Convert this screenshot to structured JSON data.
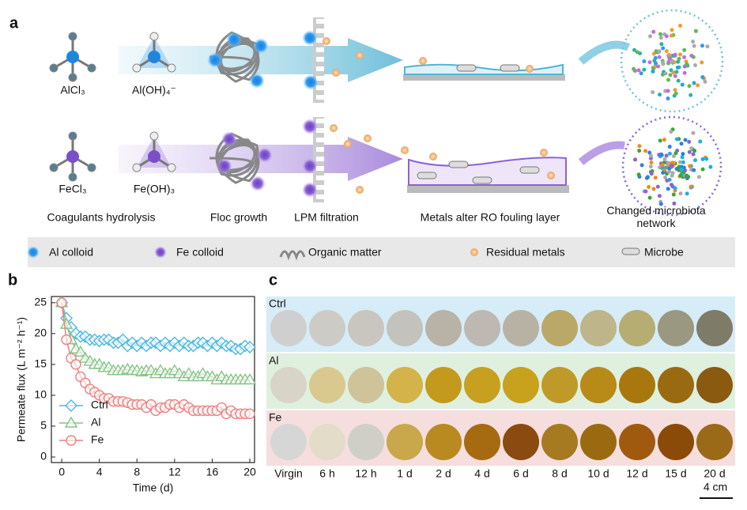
{
  "panel_a": {
    "label": "a",
    "al_labels": [
      "AlCl₃",
      "Al(OH)₄⁻"
    ],
    "fe_labels": [
      "FeCl₃",
      "Fe(OH)₃"
    ],
    "steps": [
      "Coagulants hydrolysis",
      "Floc growth",
      "LPM filtration",
      "Metals alter RO fouling layer",
      "Changed microbiota network"
    ],
    "legend": [
      "Al colloid",
      "Fe colloid",
      "Organic matter",
      "Residual metals",
      "Microbe"
    ]
  },
  "chart_data": {
    "type": "line",
    "label": "b",
    "x_label": "Time (d)",
    "y_label": "Permeate flux (L m⁻² h⁻¹)",
    "x": [
      0,
      0.5,
      1,
      1.5,
      2,
      2.5,
      3,
      3.5,
      4,
      4.5,
      5,
      5.5,
      6,
      6.5,
      7,
      7.5,
      8,
      8.5,
      9,
      9.5,
      10,
      10.5,
      11,
      11.5,
      12,
      12.5,
      13,
      13.5,
      14,
      14.5,
      15,
      15.5,
      16,
      16.5,
      17,
      17.5,
      18,
      18.5,
      19,
      19.5,
      20
    ],
    "series": [
      {
        "name": "Ctrl",
        "color": "#4db8e0",
        "marker": "diamond",
        "values": [
          25,
          22.5,
          21,
          20,
          19.5,
          19.5,
          19,
          19,
          18.8,
          19,
          19,
          18.5,
          18.5,
          19,
          18,
          18.5,
          18,
          18.5,
          18,
          18.5,
          18.5,
          18,
          18.5,
          18,
          18.5,
          18,
          18.5,
          18,
          18,
          18.5,
          18.5,
          18,
          18.5,
          18,
          18.5,
          18,
          18,
          17.5,
          17.5,
          18,
          17.8
        ]
      },
      {
        "name": "Al",
        "color": "#86c484",
        "marker": "triangle",
        "values": [
          25,
          21.5,
          19,
          17.5,
          17,
          16,
          15.5,
          15,
          15,
          14.5,
          14.5,
          14,
          14,
          14,
          14.2,
          14,
          14,
          13.8,
          14,
          14,
          13.5,
          14,
          13.5,
          13.5,
          14,
          13.5,
          13,
          13.5,
          13,
          13,
          13.5,
          13,
          13,
          12.5,
          13,
          12.5,
          12.5,
          12.5,
          12.5,
          12.5,
          12.5
        ]
      },
      {
        "name": "Fe",
        "color": "#ee7f7f",
        "marker": "circle",
        "values": [
          25,
          19,
          16,
          15,
          13,
          12,
          11,
          10.5,
          10,
          9.5,
          9.5,
          9,
          9,
          9,
          8.8,
          8.5,
          8.5,
          8.5,
          8,
          8.5,
          7.5,
          8,
          8,
          8.5,
          8.5,
          8,
          8.5,
          8,
          7.5,
          7.5,
          7.5,
          7.5,
          7.5,
          7.5,
          8,
          7,
          7.5,
          7,
          7,
          7,
          7
        ]
      }
    ],
    "xlim": [
      -1.1,
      20.5
    ],
    "ylim": [
      -0.9,
      26
    ],
    "xticks": [
      0,
      4,
      8,
      12,
      16,
      20
    ],
    "yticks": [
      0,
      5,
      10,
      15,
      20,
      25
    ],
    "legend": "lower left"
  },
  "panel_c": {
    "label": "c",
    "columns": [
      "Virgin",
      "6 h",
      "12 h",
      "1 d",
      "2 d",
      "4 d",
      "6 d",
      "8 d",
      "10 d",
      "12 d",
      "15 d",
      "20 d"
    ],
    "rows": [
      {
        "name": "Ctrl",
        "background": "#d6ecf6",
        "colors": [
          "#cfcfcf",
          "#cdcbc6",
          "#c9c6c0",
          "#c4c2bd",
          "#b9b2a6",
          "#bdb9b2",
          "#b8b2a4",
          "#b9a868",
          "#bfb58a",
          "#b6ad73",
          "#9a9880",
          "#7e7b68"
        ]
      },
      {
        "name": "Al",
        "background": "#dff0df",
        "colors": [
          "#d9d4c8",
          "#d9c98f",
          "#cfc39a",
          "#d3b34a",
          "#c39a1e",
          "#c7a020",
          "#c8a21c",
          "#c09a28",
          "#b88a18",
          "#a8780f",
          "#9a6a10",
          "#8a5a10"
        ]
      },
      {
        "name": "Fe",
        "background": "#f6dede",
        "colors": [
          "#d6d6d6",
          "#e2dcc8",
          "#cfcfc8",
          "#c8a84a",
          "#b88a20",
          "#a66a10",
          "#8a4a10",
          "#a67a20",
          "#9a6a10",
          "#a05a10",
          "#8a4a08",
          "#9a6a18"
        ]
      }
    ],
    "scale": "4 cm"
  }
}
